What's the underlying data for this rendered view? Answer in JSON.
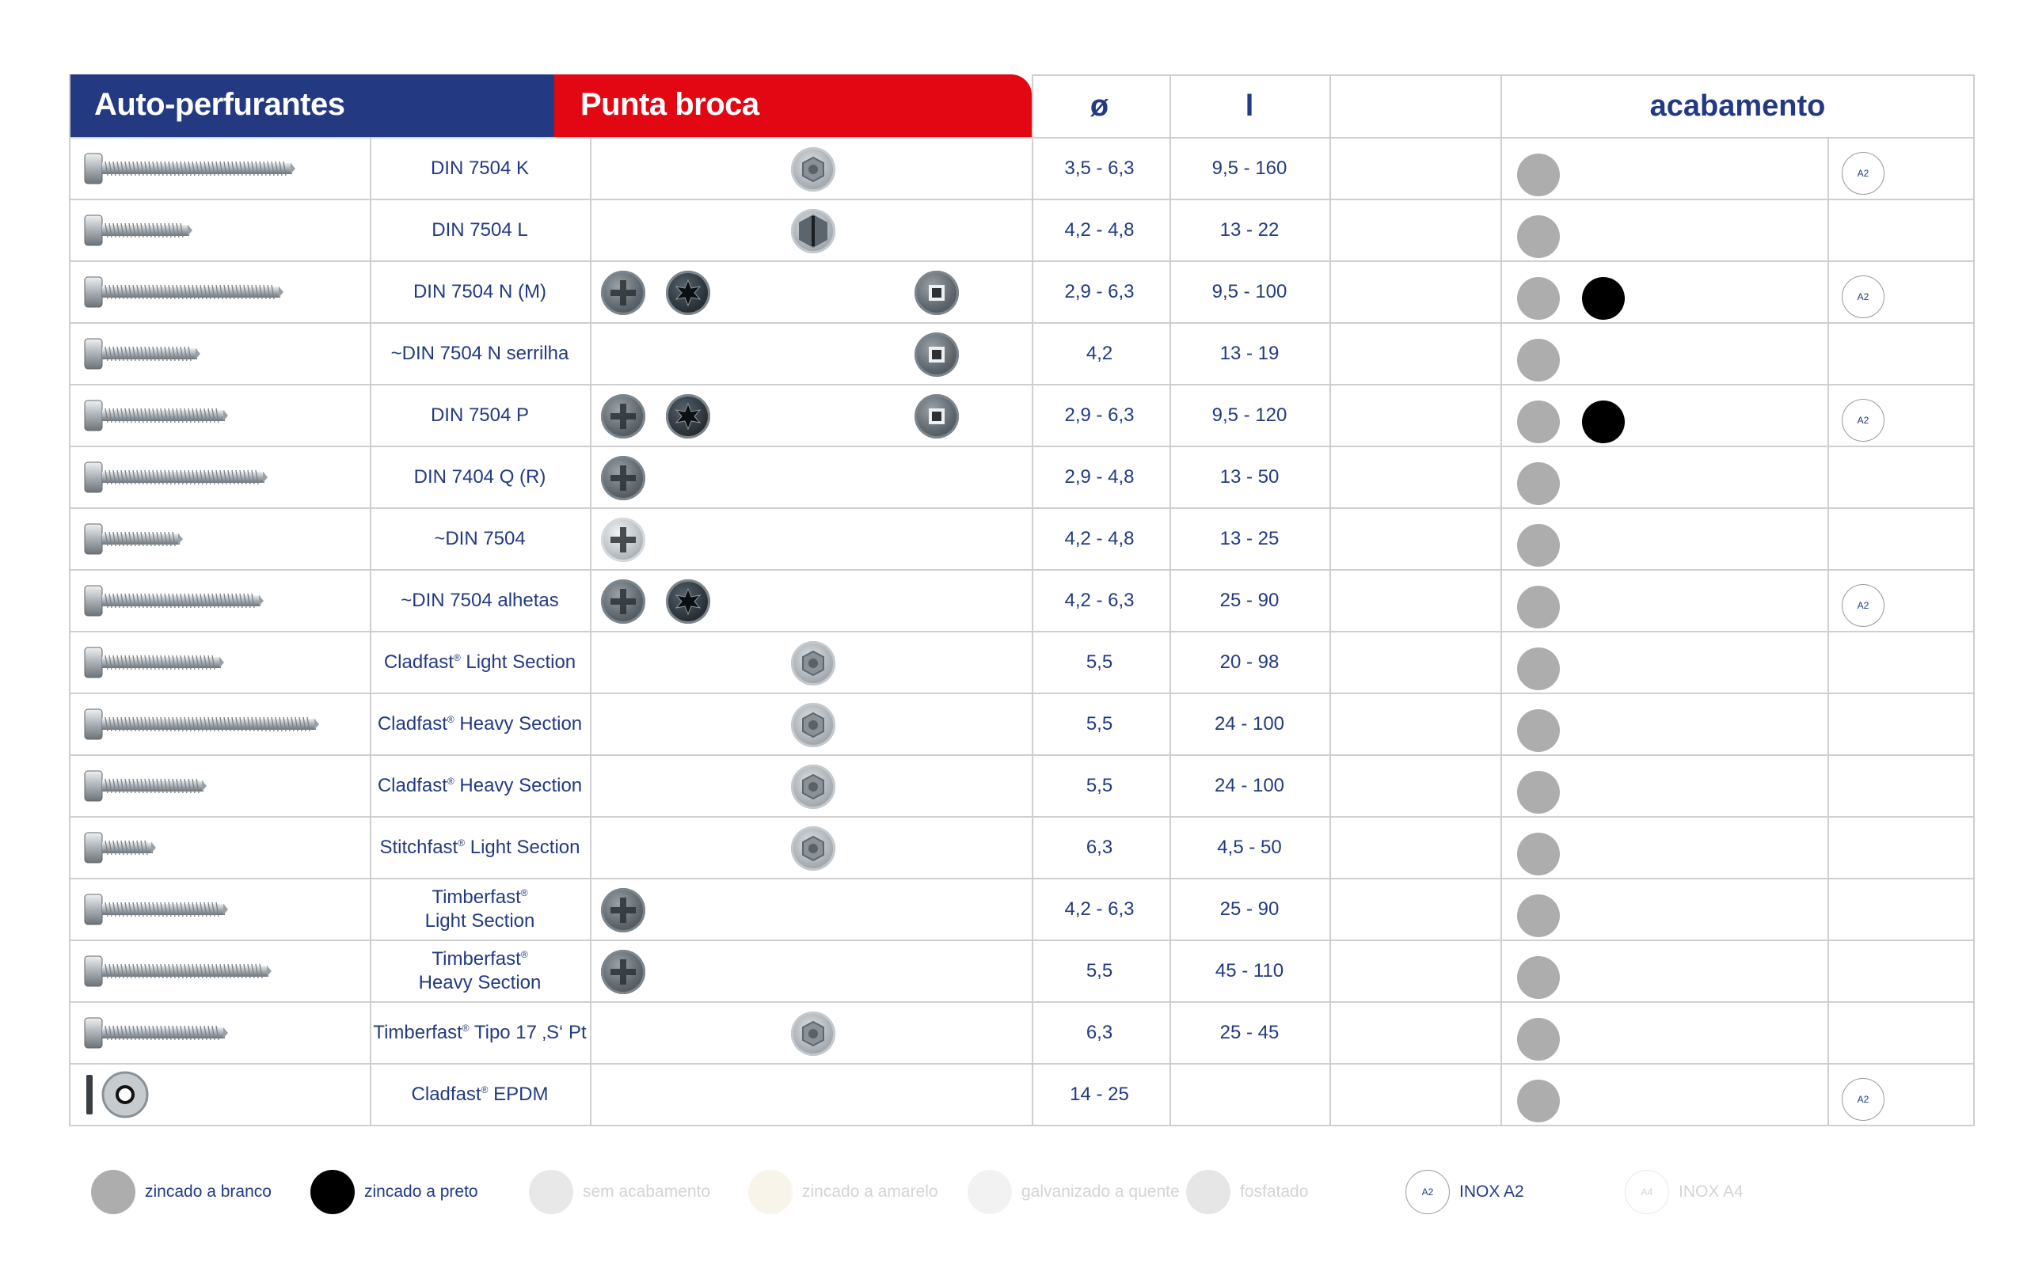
{
  "header": {
    "title_left": "Auto-perfurantes",
    "title_right": "Punta broca",
    "col_diameter": "ø",
    "col_length": "l",
    "col_finish": "acabamento"
  },
  "colors": {
    "header_blue": "#233a83",
    "header_red": "#e30613",
    "text_blue": "#233a83",
    "finish_white_zinc": "#adadad",
    "finish_black_zinc": "#000000"
  },
  "rows": [
    {
      "name": "DIN 7504 K",
      "diameter": "3,5 - 6,3",
      "length": "9,5 - 160",
      "heads": [
        "hex-washer"
      ],
      "finishes": [
        "grey"
      ],
      "a2": true
    },
    {
      "name": "DIN 7504 L",
      "diameter": "4,2 - 4,8",
      "length": "13 - 22",
      "heads": [
        "hex-slot"
      ],
      "finishes": [
        "grey"
      ],
      "a2": false
    },
    {
      "name": "DIN 7504 N (M)",
      "diameter": "2,9 - 6,3",
      "length": "9,5 - 100",
      "heads": [
        "phillips",
        "torx",
        "square"
      ],
      "finishes": [
        "grey",
        "black"
      ],
      "a2": true
    },
    {
      "name": "~DIN 7504 N serrilha",
      "diameter": "4,2",
      "length": "13 - 19",
      "heads": [
        "square"
      ],
      "finishes": [
        "grey"
      ],
      "a2": false
    },
    {
      "name": "DIN 7504 P",
      "diameter": "2,9 - 6,3",
      "length": "9,5 - 120",
      "heads": [
        "phillips",
        "torx",
        "square"
      ],
      "finishes": [
        "grey",
        "black"
      ],
      "a2": true
    },
    {
      "name": "DIN 7404 Q (R)",
      "diameter": "2,9 - 4,8",
      "length": "13 - 50",
      "heads": [
        "phillips"
      ],
      "finishes": [
        "grey"
      ],
      "a2": false
    },
    {
      "name": "~DIN 7504",
      "diameter": "4,2 - 4,8",
      "length": "13 - 25",
      "heads": [
        "phillips-silver"
      ],
      "finishes": [
        "grey"
      ],
      "a2": false
    },
    {
      "name": "~DIN 7504 alhetas",
      "diameter": "4,2 - 6,3",
      "length": "25 - 90",
      "heads": [
        "phillips",
        "torx"
      ],
      "finishes": [
        "grey"
      ],
      "a2": true
    },
    {
      "name": "Cladfast",
      "name_suffix": " Light Section",
      "diameter": "5,5",
      "length": "20 - 98",
      "heads": [
        "hex-washer"
      ],
      "finishes": [
        "grey"
      ],
      "a2": false
    },
    {
      "name": "Cladfast",
      "name_suffix": " Heavy Section",
      "diameter": "5,5",
      "length": "24 - 100",
      "heads": [
        "hex-washer"
      ],
      "finishes": [
        "grey"
      ],
      "a2": false
    },
    {
      "name": "Cladfast",
      "name_suffix": " Heavy Section",
      "diameter": "5,5",
      "length": "24 - 100",
      "heads": [
        "hex-washer"
      ],
      "finishes": [
        "grey"
      ],
      "a2": false
    },
    {
      "name": "Stitchfast",
      "name_suffix": " Light Section",
      "diameter": "6,3",
      "length": "4,5 - 50",
      "heads": [
        "hex-washer"
      ],
      "finishes": [
        "grey"
      ],
      "a2": false
    },
    {
      "name": "Timberfast",
      "name_line2": "Light Section",
      "diameter": "4,2 - 6,3",
      "length": "25 - 90",
      "heads": [
        "phillips"
      ],
      "finishes": [
        "grey"
      ],
      "a2": false
    },
    {
      "name": "Timberfast",
      "name_line2": "Heavy Section",
      "diameter": "5,5",
      "length": "45 - 110",
      "heads": [
        "phillips"
      ],
      "finishes": [
        "grey"
      ],
      "a2": false
    },
    {
      "name": "Timberfast",
      "name_suffix": " Tipo 17 ‚S‘ Pt",
      "diameter": "6,3",
      "length": "25 - 45",
      "heads": [
        "hex-washer"
      ],
      "finishes": [
        "grey"
      ],
      "a2": false
    },
    {
      "name": "Cladfast",
      "name_suffix": " EPDM",
      "diameter": "14 - 25",
      "length": "",
      "heads": [],
      "finishes": [
        "grey"
      ],
      "a2": true
    }
  ],
  "registered_mark": "®",
  "a2_badge": "A2",
  "legend": [
    {
      "label": "zincado a branco",
      "color": "#adadad",
      "faded": false
    },
    {
      "label": "zincado a preto",
      "color": "#000000",
      "faded": false
    },
    {
      "label": "sem acabamento",
      "color": "#e8e8e8",
      "faded": true
    },
    {
      "label": "zincado a amarelo",
      "color": "#f8f4ea",
      "faded": true
    },
    {
      "label": "galvanizado a quente",
      "color": "#f2f2f2",
      "faded": true
    },
    {
      "label": "fosfatado",
      "color": "#e6e6e6",
      "faded": true
    },
    {
      "label": "INOX A2",
      "badge": "A2",
      "faded": false
    },
    {
      "label": "INOX A4",
      "badge": "A4",
      "faded": true
    }
  ]
}
